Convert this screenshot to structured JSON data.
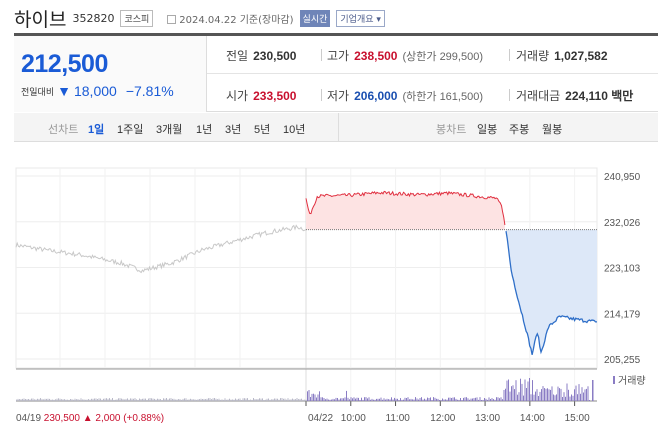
{
  "header": {
    "name": "하이브",
    "code": "352820",
    "market": "코스피",
    "date": "2024.04.22 기준(장마감)",
    "live_label": "실시간",
    "company_label": "기업개요 ▾"
  },
  "quote": {
    "price": "212,500",
    "change_label": "전일대비",
    "change": "18,000",
    "change_pct": "−7.81%",
    "direction": "down",
    "prev_label": "전일",
    "prev": "230,500",
    "high_label": "고가",
    "high": "238,500",
    "upper_limit": "(상한가 299,500)",
    "volume_label": "거래량",
    "volume": "1,027,582",
    "open_label": "시가",
    "open": "233,500",
    "low_label": "저가",
    "low": "206,000",
    "lower_limit": "(하한가 161,500)",
    "amount_label": "거래대금",
    "amount": "224,110 백만"
  },
  "tabs": {
    "line_label": "선차트",
    "line_items": [
      "1일",
      "1주일",
      "3개월",
      "1년",
      "3년",
      "5년",
      "10년"
    ],
    "active": "1일",
    "candle_label": "봉차트",
    "candle_items": [
      "일봉",
      "주봉",
      "월봉"
    ]
  },
  "chart_data": {
    "type": "line",
    "yticks": [
      "240,950",
      "232,026",
      "223,103",
      "214,179",
      "205,255"
    ],
    "ylim": [
      205255,
      240950
    ],
    "baseline": 230500,
    "xticks": [
      "04/22",
      "10:00",
      "11:00",
      "12:00",
      "13:00",
      "14:00",
      "15:00"
    ],
    "prev_day": {
      "label": "04/19",
      "close": "230,500",
      "change": "▲ 2,000",
      "change_pct": "(+0.88%)",
      "points": [
        [
          "09:00",
          227500
        ],
        [
          "09:40",
          226500
        ],
        [
          "10:30",
          225500
        ],
        [
          "11:20",
          224000
        ],
        [
          "11:50",
          222500
        ],
        [
          "12:30",
          224000
        ],
        [
          "13:10",
          226500
        ],
        [
          "14:00",
          228500
        ],
        [
          "14:40",
          230000
        ],
        [
          "15:20",
          231000
        ],
        [
          "15:30",
          230500
        ]
      ]
    },
    "today": {
      "points": [
        [
          "09:00",
          236500
        ],
        [
          "09:05",
          233300
        ],
        [
          "09:15",
          237000
        ],
        [
          "10:00",
          237200
        ],
        [
          "10:40",
          237700
        ],
        [
          "11:30",
          237300
        ],
        [
          "12:10",
          237600
        ],
        [
          "12:50",
          237000
        ],
        [
          "13:15",
          236600
        ],
        [
          "13:22",
          235000
        ],
        [
          "13:28",
          230500
        ],
        [
          "13:35",
          222500
        ],
        [
          "13:45",
          216500
        ],
        [
          "13:55",
          211000
        ],
        [
          "14:03",
          206200
        ],
        [
          "14:10",
          210500
        ],
        [
          "14:15",
          206500
        ],
        [
          "14:25",
          211500
        ],
        [
          "14:40",
          213500
        ],
        [
          "15:00",
          213000
        ],
        [
          "15:28",
          212500
        ]
      ],
      "colors": {
        "up": "#e03040",
        "down": "#2f6fc8"
      }
    },
    "volume_label": "거래량",
    "volume_color": "#8a7cc4"
  }
}
